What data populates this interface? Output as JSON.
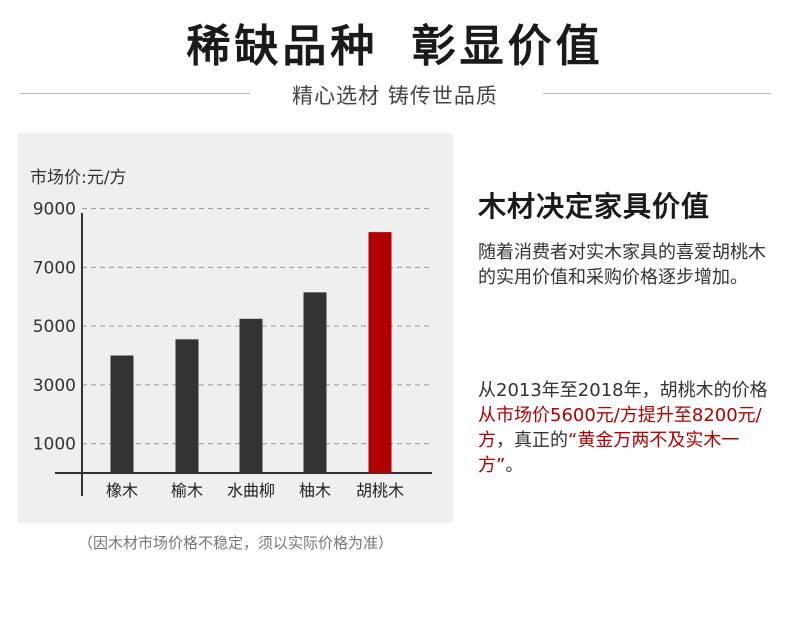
{
  "header": {
    "title": "稀缺品种  彰显价值",
    "subtitle": "精心选材 铸传世品质"
  },
  "chart": {
    "unit_label": "市场价:元/方",
    "note": "（因木材市场价格不稳定，须以实际价格为准）"
  },
  "chart_data": {
    "type": "bar",
    "categories": [
      "橡木",
      "榆木",
      "水曲柳",
      "柚木",
      "胡桃木"
    ],
    "values": [
      4000,
      4550,
      5250,
      6150,
      8200
    ],
    "yticks": [
      1000,
      3000,
      5000,
      7000,
      9000
    ],
    "ylim": [
      0,
      9500
    ],
    "grid": true,
    "bar_colors": [
      "#333333",
      "#333333",
      "#333333",
      "#333333",
      "#b00000"
    ],
    "title": "",
    "xlabel": "",
    "ylabel": "市场价:元/方"
  },
  "side": {
    "heading": "木材决定家具价值",
    "para1": "随着消费者对实木家具的喜爱胡桃木的实用价值和采购价格逐步增加。",
    "para2_a": "从2013年至2018年，胡桃木的价格",
    "para2_b": "从市场价5600元/方提升至8200元/方",
    "para2_c": "，真正的",
    "para2_d": "“黄金万两不及实木一方”",
    "para2_e": "。"
  },
  "colors": {
    "accent": "#b00000",
    "bar": "#333333",
    "panel": "#efefef"
  }
}
